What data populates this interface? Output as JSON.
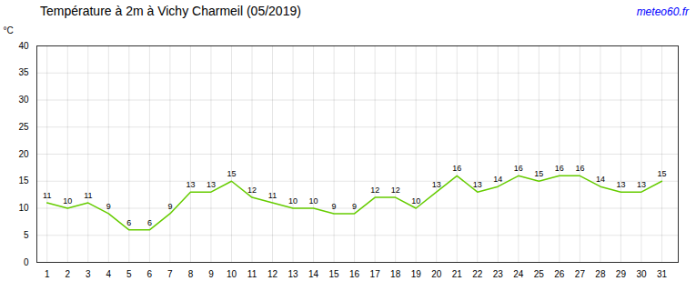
{
  "chart_data": {
    "type": "line",
    "title": "Température à 2m à Vichy Charmeil (05/2019)",
    "ylabel": "°C",
    "annotations": [
      {
        "text": "meteo60.fr",
        "color": "blue"
      }
    ],
    "x": [
      1,
      2,
      3,
      4,
      5,
      6,
      7,
      8,
      9,
      10,
      11,
      12,
      13,
      14,
      15,
      16,
      17,
      18,
      19,
      20,
      21,
      22,
      23,
      24,
      25,
      26,
      27,
      28,
      29,
      30,
      31
    ],
    "values": [
      11,
      10,
      11,
      9,
      6,
      6,
      9,
      13,
      13,
      15,
      12,
      11,
      10,
      10,
      9,
      9,
      12,
      12,
      10,
      13,
      16,
      13,
      14,
      16,
      15,
      16,
      16,
      14,
      13,
      13,
      15
    ],
    "color": "#66cc00",
    "xlim": [
      0.5,
      31.8
    ],
    "xticks": [
      1,
      2,
      3,
      4,
      5,
      6,
      7,
      8,
      9,
      10,
      11,
      12,
      13,
      14,
      15,
      16,
      17,
      18,
      19,
      20,
      21,
      22,
      23,
      24,
      25,
      26,
      27,
      28,
      29,
      30,
      31
    ],
    "ylim": [
      0,
      40
    ],
    "yticks": [
      0,
      5,
      10,
      15,
      20,
      25,
      30,
      35,
      40
    ],
    "grid": true,
    "data_labels": true
  }
}
